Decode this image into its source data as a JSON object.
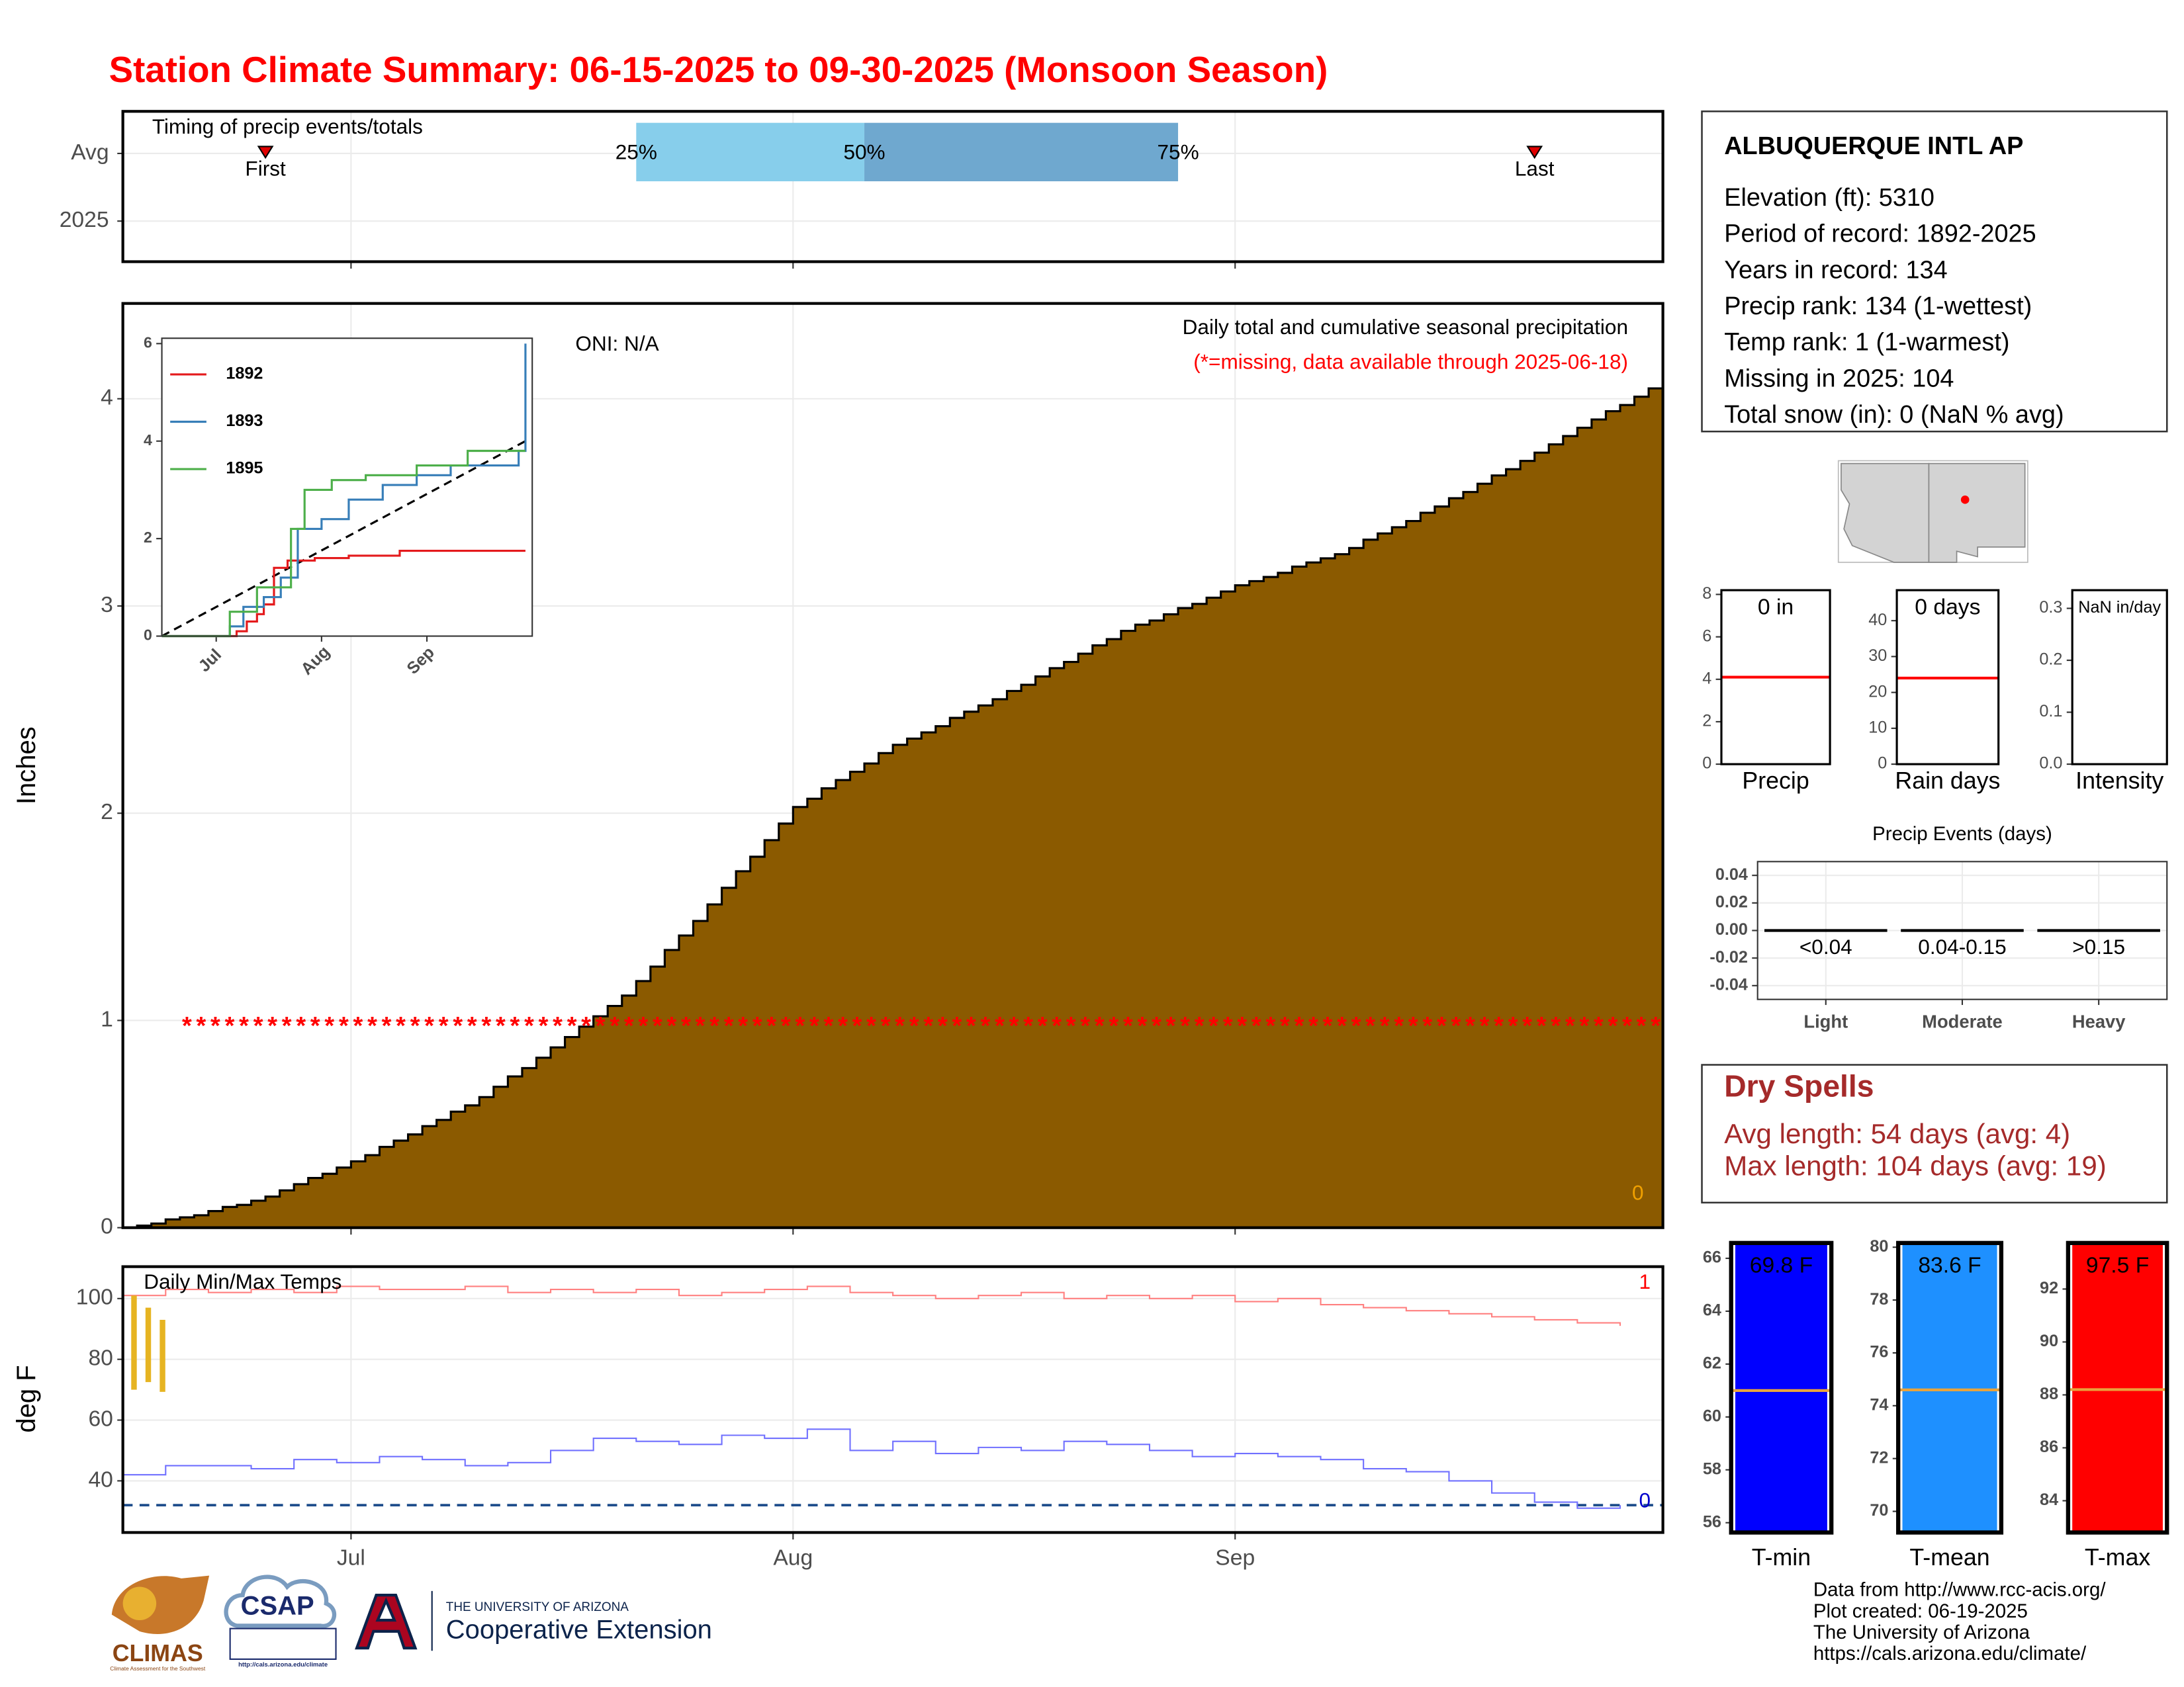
{
  "title": "Station Climate Summary: 06-15-2025 to 09-30-2025 (Monsoon Season)",
  "chart_data": [
    {
      "type": "timing",
      "title": "Timing of precip events/totals",
      "categories": [
        "Avg",
        "2025"
      ],
      "xlim": [
        0,
        108
      ],
      "xticks": [
        16,
        47,
        78
      ],
      "first": 10,
      "first_label": "First",
      "last": 99,
      "last_label": "Last",
      "marker_color": "#e00000",
      "quartiles": [
        {
          "value": 36,
          "label": "25%"
        },
        {
          "value": 52,
          "label": "50%"
        },
        {
          "value": 74,
          "label": "75%"
        }
      ],
      "bar_colors": [
        "#87ceeb",
        "#6fa8cf"
      ]
    },
    {
      "type": "area",
      "title": "Daily total and cumulative seasonal precipitation",
      "note": "(*=missing, data available through 2025-06-18)",
      "annotation": "ONI: N/A",
      "corner_label": "0",
      "ylabel": "Inches",
      "x": [
        0,
        1,
        2,
        3,
        4,
        5,
        6,
        7,
        8,
        9,
        10,
        11,
        12,
        13,
        14,
        15,
        16,
        17,
        18,
        19,
        20,
        21,
        22,
        23,
        24,
        25,
        26,
        27,
        28,
        29,
        30,
        31,
        32,
        33,
        34,
        35,
        36,
        37,
        38,
        39,
        40,
        41,
        42,
        43,
        44,
        45,
        46,
        47,
        48,
        49,
        50,
        51,
        52,
        53,
        54,
        55,
        56,
        57,
        58,
        59,
        60,
        61,
        62,
        63,
        64,
        65,
        66,
        67,
        68,
        69,
        70,
        71,
        72,
        73,
        74,
        75,
        76,
        77,
        78,
        79,
        80,
        81,
        82,
        83,
        84,
        85,
        86,
        87,
        88,
        89,
        90,
        91,
        92,
        93,
        94,
        95,
        96,
        97,
        98,
        99,
        100,
        101,
        102,
        103,
        104,
        105,
        106,
        107
      ],
      "values": [
        0,
        0.01,
        0.02,
        0.04,
        0.05,
        0.06,
        0.08,
        0.1,
        0.11,
        0.13,
        0.15,
        0.18,
        0.21,
        0.24,
        0.26,
        0.29,
        0.32,
        0.35,
        0.39,
        0.42,
        0.45,
        0.49,
        0.52,
        0.56,
        0.59,
        0.63,
        0.68,
        0.73,
        0.77,
        0.82,
        0.87,
        0.92,
        0.97,
        1.02,
        1.07,
        1.12,
        1.19,
        1.26,
        1.34,
        1.41,
        1.48,
        1.56,
        1.64,
        1.72,
        1.79,
        1.87,
        1.95,
        2.03,
        2.07,
        2.12,
        2.16,
        2.2,
        2.24,
        2.29,
        2.33,
        2.36,
        2.39,
        2.42,
        2.46,
        2.49,
        2.52,
        2.55,
        2.59,
        2.62,
        2.66,
        2.7,
        2.73,
        2.77,
        2.81,
        2.84,
        2.88,
        2.91,
        2.93,
        2.96,
        2.99,
        3.01,
        3.04,
        3.07,
        3.1,
        3.12,
        3.14,
        3.16,
        3.19,
        3.21,
        3.23,
        3.25,
        3.28,
        3.32,
        3.35,
        3.38,
        3.41,
        3.45,
        3.48,
        3.52,
        3.55,
        3.59,
        3.63,
        3.66,
        3.7,
        3.74,
        3.78,
        3.82,
        3.86,
        3.9,
        3.94,
        3.97,
        4.01,
        4.05
      ],
      "color": "#8b5a00",
      "xlim": [
        0,
        108
      ],
      "xticks": [
        16,
        47,
        78
      ],
      "ylim": [
        0,
        4.46
      ],
      "yticks": [
        0,
        1,
        2,
        3,
        4
      ],
      "grid": true,
      "missing_label": "*",
      "missing_level": 1,
      "missing_from": 4,
      "missing_to": 107,
      "missing_color": "#ff0000",
      "corner_color": "#f0a000"
    },
    {
      "type": "line",
      "xlim": [
        0,
        109
      ],
      "xticks": [
        {
          "value": 16,
          "label": "Jul"
        },
        {
          "value": 47,
          "label": "Aug"
        },
        {
          "value": 78,
          "label": "Sep"
        }
      ],
      "ylim": [
        0,
        6.11
      ],
      "yticks": [
        0,
        2,
        4,
        6
      ],
      "series": [
        {
          "name": "1892",
          "color": "#e41a1c",
          "x": [
            0,
            17,
            22,
            25,
            28,
            30,
            33,
            37,
            45,
            55,
            70,
            107
          ],
          "values": [
            0,
            0,
            0.1,
            0.3,
            0.45,
            0.65,
            1.4,
            1.55,
            1.6,
            1.65,
            1.75,
            1.75
          ]
        },
        {
          "name": "1893",
          "color": "#377eb8",
          "x": [
            0,
            20,
            24,
            30,
            35,
            40,
            47,
            55,
            65,
            75,
            85,
            95,
            105,
            106,
            107
          ],
          "values": [
            0,
            0.2,
            0.6,
            0.8,
            1.2,
            2.2,
            2.4,
            2.8,
            3.1,
            3.3,
            3.5,
            3.5,
            3.8,
            3.8,
            6.0
          ]
        },
        {
          "name": "1895",
          "color": "#4daf4a",
          "x": [
            0,
            20,
            28,
            38,
            42,
            50,
            60,
            75,
            90,
            107
          ],
          "values": [
            0,
            0.5,
            1.0,
            2.2,
            3.0,
            3.2,
            3.3,
            3.5,
            3.8,
            3.8
          ]
        }
      ],
      "average": {
        "color": "#000000",
        "x": [
          0,
          107
        ],
        "values": [
          0,
          4
        ]
      }
    },
    {
      "type": "temps",
      "title": "Daily Min/Max Temps",
      "ylabel": "deg F",
      "xlim": [
        0,
        108
      ],
      "xticks": [
        {
          "value": 16,
          "label": "Jul"
        },
        {
          "value": 47,
          "label": "Aug"
        },
        {
          "value": 78,
          "label": "Sep"
        }
      ],
      "ylim": [
        23,
        110.5
      ],
      "yticks": [
        40,
        60,
        80,
        100
      ],
      "grid": true,
      "max": {
        "color": "#ff8080",
        "x": [
          0,
          3,
          6,
          9,
          12,
          15,
          18,
          21,
          24,
          27,
          30,
          33,
          36,
          39,
          42,
          45,
          48,
          51,
          54,
          57,
          60,
          63,
          66,
          69,
          72,
          75,
          78,
          81,
          84,
          87,
          90,
          93,
          96,
          99,
          102,
          105
        ],
        "values": [
          101,
          103,
          102,
          103,
          102,
          104,
          103,
          103,
          104,
          102,
          103,
          102,
          103,
          101,
          102,
          103,
          104,
          102,
          101,
          100,
          101,
          102,
          100,
          101,
          100,
          101,
          99,
          100,
          98,
          97,
          96,
          95,
          94,
          93,
          92,
          91
        ]
      },
      "min": {
        "color": "#7070ff",
        "x": [
          0,
          3,
          6,
          9,
          12,
          15,
          18,
          21,
          24,
          27,
          30,
          33,
          36,
          39,
          42,
          45,
          48,
          51,
          54,
          57,
          60,
          63,
          66,
          69,
          72,
          75,
          78,
          81,
          84,
          87,
          90,
          93,
          96,
          99,
          102,
          105
        ],
        "values": [
          42,
          45,
          45,
          44,
          47,
          46,
          48,
          47,
          45,
          46,
          50,
          54,
          53,
          52,
          55,
          54,
          57,
          50,
          53,
          49,
          51,
          50,
          53,
          52,
          50,
          48,
          49,
          48,
          47,
          44,
          43,
          40,
          36,
          33,
          31,
          32
        ]
      },
      "freeze_level": 32,
      "freeze_color": "#1f4e8c",
      "obs": {
        "color": "#e6b422",
        "x": [
          0,
          1,
          2
        ],
        "low": [
          70,
          72.5,
          69.3
        ],
        "high": [
          101,
          97,
          93
        ]
      },
      "max_label": "1",
      "min_label": "0"
    },
    {
      "type": "summary_bar",
      "label": "Precip",
      "values": [
        0
      ],
      "value_labels": [
        "0 in"
      ],
      "avg": 4.1,
      "avg_color": "#ff0000",
      "ylim": [
        0,
        8.2
      ],
      "yticks": [
        0,
        2,
        4,
        6,
        8
      ]
    },
    {
      "type": "summary_bar",
      "label": "Rain days",
      "values": [
        0
      ],
      "value_labels": [
        "0 days"
      ],
      "avg": 24,
      "avg_color": "#ff0000",
      "ylim": [
        0,
        48.5
      ],
      "yticks": [
        0,
        10,
        20,
        30,
        40
      ]
    },
    {
      "type": "summary_bar",
      "label": "Intensity",
      "values": [
        null
      ],
      "value_labels": [
        "NaN in/day"
      ],
      "ylim": [
        0,
        0.335
      ],
      "yticks": [
        {
          "value": 0,
          "label": "0.0"
        },
        0.1,
        0.2,
        0.3
      ]
    },
    {
      "type": "events",
      "title": "Precip Events (days)",
      "categories": [
        "<0.04",
        "0.04-0.15",
        ">0.15"
      ],
      "groups": [
        "Light",
        "Moderate",
        "Heavy"
      ],
      "values": [
        0,
        0,
        0
      ],
      "ylim": [
        -0.05,
        0.05
      ],
      "yticks": [
        -0.04,
        -0.02,
        {
          "value": 0,
          "label": "0.00"
        },
        0.02,
        0.04
      ],
      "grid": true
    },
    {
      "type": "temp_bar",
      "label": "T-min",
      "values": [
        69.8
      ],
      "value_labels": [
        "69.8 F"
      ],
      "color": "#0000ff",
      "avg": 61.0,
      "avg_color": "#e8a33d",
      "ylim": [
        55.63,
        66.58
      ],
      "yticks": [
        56,
        58,
        60,
        62,
        64,
        66
      ]
    },
    {
      "type": "temp_bar",
      "label": "T-mean",
      "values": [
        83.6
      ],
      "value_labels": [
        "83.6 F"
      ],
      "color": "#1e90ff",
      "avg": 74.6,
      "avg_color": "#e8a33d",
      "ylim": [
        69.2,
        80.16
      ],
      "yticks": [
        70,
        72,
        74,
        76,
        78,
        80
      ]
    },
    {
      "type": "temp_bar",
      "label": "T-max",
      "values": [
        97.5
      ],
      "value_labels": [
        "97.5 F"
      ],
      "color": "#ff0000",
      "avg": 88.2,
      "avg_color": "#e8a33d",
      "ylim": [
        82.8,
        93.74
      ],
      "yticks": [
        84,
        86,
        88,
        90,
        92
      ]
    }
  ],
  "station": {
    "name": "ALBUQUERQUE INTL AP",
    "lines": [
      "Elevation (ft): 5310",
      "Period of record: 1892-2025",
      "Years in record: 134",
      "Precip rank: 134 (1-wettest)",
      "Temp rank: 1 (1-warmest)",
      "Missing in 2025: 104",
      "Total snow (in): 0 (NaN % avg)"
    ]
  },
  "dry_spells": {
    "title": "Dry Spells",
    "lines": [
      "Avg length: 54 days (avg: 4)",
      "Max length: 104 days (avg: 19)"
    ]
  },
  "footer": [
    "Data from http://www.rcc-acis.org/",
    "Plot created: 06-19-2025",
    "The University of Arizona",
    "https://cals.arizona.edu/climate/"
  ],
  "logos": {
    "climas": "CLIMAS",
    "climas_tagline": "Climate Assessment for the Southwest",
    "csap": "CSAP",
    "csap_url": "http://cals.arizona.edu/climate",
    "ua": "THE UNIVERSITY OF ARIZONA",
    "ua_unit": "Cooperative Extension"
  }
}
